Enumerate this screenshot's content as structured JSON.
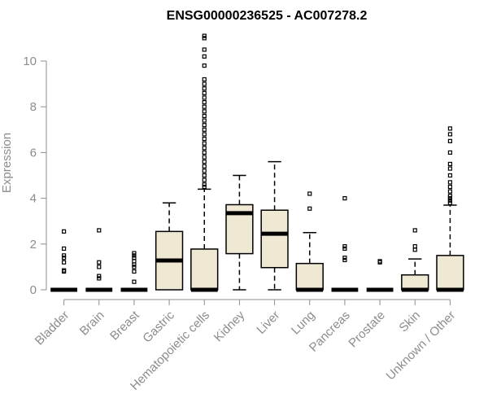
{
  "chart_data": {
    "type": "boxplot",
    "title": "ENSG00000236525 - AC007278.2",
    "ylabel": "Expression",
    "xlabel": "",
    "ylim": [
      0,
      11.2
    ],
    "yticks": [
      0,
      2,
      4,
      6,
      8,
      10
    ],
    "grid": false,
    "box_fill": "#efe8d3",
    "axis_color": "#8c8c8c",
    "categories": [
      "Bladder",
      "Brain",
      "Breast",
      "Gastric",
      "Hematopoietic cells",
      "Kidney",
      "Liver",
      "Lung",
      "Pancreas",
      "Prostate",
      "Skin",
      "Unknown / Other"
    ],
    "boxes": [
      {
        "q1": 0,
        "median": 0,
        "q3": 0,
        "whisker_low": 0,
        "whisker_high": 0,
        "outliers": [
          0.8,
          0.85,
          1.2,
          1.4,
          1.5,
          1.8,
          2.55
        ]
      },
      {
        "q1": 0,
        "median": 0,
        "q3": 0,
        "whisker_low": 0,
        "whisker_high": 0,
        "outliers": [
          0.5,
          0.6,
          1.0,
          1.2,
          2.6
        ]
      },
      {
        "q1": 0,
        "median": 0,
        "q3": 0,
        "whisker_low": 0,
        "whisker_high": 0,
        "outliers": [
          0.35,
          0.8,
          1.0,
          1.1,
          1.25,
          1.4,
          1.5,
          1.6
        ]
      },
      {
        "q1": 0,
        "median": 1.28,
        "q3": 2.55,
        "whisker_low": 0,
        "whisker_high": 3.8,
        "outliers": []
      },
      {
        "q1": 0,
        "median": 0,
        "q3": 1.78,
        "whisker_low": 0,
        "whisker_high": 4.4,
        "outliers": [
          4.5,
          4.6,
          4.8,
          5.0,
          5.2,
          5.4,
          5.6,
          5.8,
          6.0,
          6.2,
          6.4,
          6.6,
          6.8,
          7.0,
          7.2,
          7.4,
          7.6,
          7.8,
          8.0,
          8.2,
          8.4,
          8.6,
          8.8,
          9.0,
          9.2,
          9.8,
          10.2,
          10.5,
          11.0,
          11.1
        ]
      },
      {
        "q1": 1.58,
        "median": 3.35,
        "q3": 3.72,
        "whisker_low": 0,
        "whisker_high": 5.0,
        "outliers": []
      },
      {
        "q1": 0.97,
        "median": 2.45,
        "q3": 3.48,
        "whisker_low": 0,
        "whisker_high": 5.6,
        "outliers": []
      },
      {
        "q1": 0,
        "median": 0,
        "q3": 1.15,
        "whisker_low": 0,
        "whisker_high": 2.5,
        "outliers": [
          3.55,
          4.2
        ]
      },
      {
        "q1": 0,
        "median": 0,
        "q3": 0,
        "whisker_low": 0,
        "whisker_high": 0,
        "outliers": [
          1.3,
          1.4,
          1.8,
          1.9,
          4.0
        ]
      },
      {
        "q1": 0,
        "median": 0,
        "q3": 0,
        "whisker_low": 0,
        "whisker_high": 0,
        "outliers": [
          1.2,
          1.25
        ]
      },
      {
        "q1": 0,
        "median": 0,
        "q3": 0.65,
        "whisker_low": 0,
        "whisker_high": 1.35,
        "outliers": [
          1.75,
          1.9,
          2.6
        ]
      },
      {
        "q1": 0,
        "median": 0,
        "q3": 1.5,
        "whisker_low": 0,
        "whisker_high": 3.7,
        "outliers": [
          3.8,
          3.9,
          4.0,
          4.1,
          4.3,
          4.5,
          4.7,
          5.0,
          5.3,
          5.5,
          6.0,
          6.5,
          6.8,
          7.05
        ]
      }
    ]
  }
}
